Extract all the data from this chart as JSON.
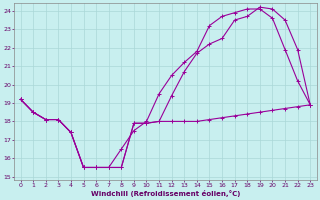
{
  "xlabel": "Windchill (Refroidissement éolien,°C)",
  "background_color": "#c8efef",
  "grid_color": "#aad8d8",
  "line_color": "#990099",
  "xlim": [
    -0.5,
    23.5
  ],
  "ylim": [
    14.8,
    24.4
  ],
  "yticks": [
    15,
    16,
    17,
    18,
    19,
    20,
    21,
    22,
    23,
    24
  ],
  "xticks": [
    0,
    1,
    2,
    3,
    4,
    5,
    6,
    7,
    8,
    9,
    10,
    11,
    12,
    13,
    14,
    15,
    16,
    17,
    18,
    19,
    20,
    21,
    22,
    23
  ],
  "line1_x": [
    0,
    1,
    2,
    3,
    4,
    5,
    6,
    7,
    8,
    9,
    10,
    11,
    12,
    13,
    14,
    15,
    16,
    17,
    18,
    19,
    20,
    21,
    22,
    23
  ],
  "line1_y": [
    19.2,
    18.5,
    18.1,
    18.1,
    17.4,
    15.5,
    15.5,
    15.5,
    15.5,
    17.9,
    17.9,
    18.0,
    18.0,
    18.0,
    18.0,
    18.1,
    18.2,
    18.3,
    18.4,
    18.5,
    18.6,
    18.7,
    18.8,
    18.9
  ],
  "line2_x": [
    0,
    1,
    2,
    3,
    4,
    5,
    6,
    7,
    8,
    9,
    10,
    11,
    12,
    13,
    14,
    15,
    16,
    17,
    18,
    19,
    20,
    21,
    22,
    23
  ],
  "line2_y": [
    19.2,
    18.5,
    18.1,
    18.1,
    17.4,
    15.5,
    15.5,
    15.5,
    16.5,
    17.5,
    18.0,
    19.5,
    20.5,
    21.2,
    21.8,
    23.2,
    23.7,
    23.9,
    24.1,
    24.1,
    23.6,
    21.9,
    20.2,
    18.9
  ],
  "line3_x": [
    0,
    1,
    2,
    3,
    4,
    5,
    6,
    7,
    8,
    9,
    10,
    11,
    12,
    13,
    14,
    15,
    16,
    17,
    18,
    19,
    20,
    21,
    22,
    23
  ],
  "line3_y": [
    19.2,
    18.5,
    18.1,
    18.1,
    17.4,
    15.5,
    15.5,
    15.5,
    15.5,
    17.9,
    17.9,
    18.0,
    19.4,
    20.7,
    21.7,
    22.2,
    22.5,
    23.5,
    23.7,
    24.2,
    24.1,
    23.5,
    21.9,
    18.9
  ]
}
